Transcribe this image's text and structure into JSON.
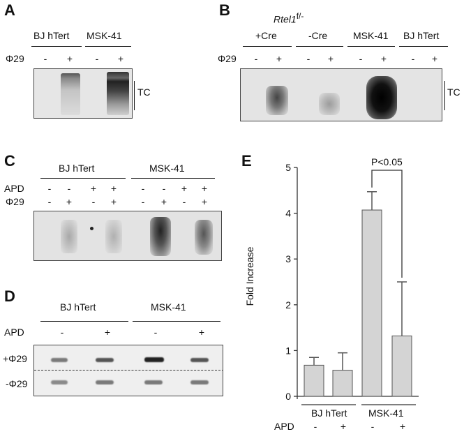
{
  "panels": {
    "A": {
      "label": "A",
      "groups": [
        "BJ hTert",
        "MSK-41"
      ],
      "row_label": "Φ29",
      "signs": [
        "-",
        "+",
        "-",
        "+"
      ],
      "bracket_label": "TC"
    },
    "B": {
      "label": "B",
      "title_main": "Rtel1",
      "title_sup": "f/-",
      "groups": [
        "+Cre",
        "-Cre",
        "MSK-41",
        "BJ hTert"
      ],
      "row_label": "Φ29",
      "signs": [
        "-",
        "+",
        "-",
        "+",
        "-",
        "+",
        "-",
        "+"
      ],
      "bracket_label": "TC"
    },
    "C": {
      "label": "C",
      "groups": [
        "BJ hTert",
        "MSK-41"
      ],
      "rows": [
        {
          "label": "APD",
          "signs": [
            "-",
            "-",
            "+",
            "+",
            "-",
            "-",
            "+",
            "+"
          ]
        },
        {
          "label": "Φ29",
          "signs": [
            "-",
            "+",
            "-",
            "+",
            "-",
            "+",
            "-",
            "+"
          ]
        }
      ]
    },
    "D": {
      "label": "D",
      "groups": [
        "BJ hTert",
        "MSK-41"
      ],
      "row_label": "APD",
      "signs": [
        "-",
        "+",
        "-",
        "+"
      ],
      "lane_labels": [
        "+Φ29",
        "-Φ29"
      ]
    },
    "E": {
      "label": "E",
      "significance": "P<0.05",
      "group_labels": [
        "BJ hTert",
        "MSK-41"
      ],
      "row_label": "APD",
      "signs": [
        "-",
        "+",
        "-",
        "+"
      ]
    }
  },
  "chart_data": {
    "type": "bar",
    "categories": [
      "BJ hTert APD-",
      "BJ hTert APD+",
      "MSK-41 APD-",
      "MSK-41 APD+"
    ],
    "values": [
      0.68,
      0.57,
      4.07,
      1.32
    ],
    "errors": [
      0.17,
      0.38,
      0.4,
      1.18
    ],
    "ylabel": "Fold Increase",
    "xlabel": "",
    "ylim": [
      0,
      5
    ],
    "yticks": [
      "0",
      "1",
      "2",
      "3",
      "4",
      "5"
    ],
    "bar_color": "#d4d4d4",
    "grid": false
  }
}
